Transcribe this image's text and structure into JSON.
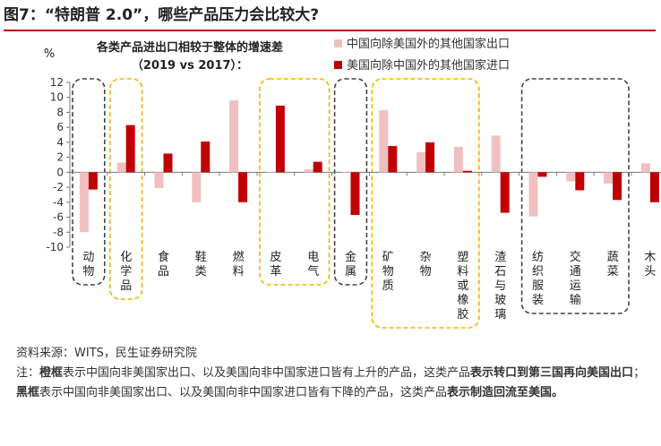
{
  "figure": {
    "title": "图7：“特朗普 2.0”，哪些产品压力会比较大?"
  },
  "chart_data": {
    "type": "bar",
    "title_line1": "各类产品进出口相较于整体的增速差",
    "title_line2": "（2019 vs 2017）：",
    "ylabel": "%",
    "ylim": [
      -10,
      12
    ],
    "yticks": [
      -10,
      -8,
      -6,
      -4,
      -2,
      0,
      2,
      4,
      6,
      8,
      10,
      12
    ],
    "grid": false,
    "legend_position": "top-right",
    "categories": [
      "动物",
      "化学品",
      "食品",
      "鞋类",
      "燃料",
      "皮革",
      "电气",
      "金属",
      "矿物质",
      "杂物",
      "塑料或橡胶",
      "渣石与玻璃",
      "纺织服装",
      "交通运输",
      "蔬菜",
      "木头"
    ],
    "series": [
      {
        "name": "中国向除美国外的其他国家出口",
        "color": "#f0c0c0",
        "values": [
          -8.0,
          1.3,
          -2.1,
          -4.0,
          9.6,
          0.0,
          0.4,
          0.0,
          8.3,
          2.7,
          3.4,
          4.9,
          -5.9,
          -1.2,
          -1.5,
          1.2
        ]
      },
      {
        "name": "美国向除中国外的其他国家进口",
        "color": "#c00000",
        "values": [
          -2.3,
          6.3,
          2.5,
          4.1,
          -4.0,
          8.9,
          1.4,
          -5.7,
          3.5,
          4.0,
          0.2,
          -5.4,
          -0.6,
          -2.4,
          -3.7,
          -4.0
        ]
      }
    ],
    "groups": [
      {
        "style": "black-dashed",
        "members": [
          "动物"
        ]
      },
      {
        "style": "orange-dashed",
        "members": [
          "化学品"
        ]
      },
      {
        "style": "orange-dashed",
        "members": [
          "皮革",
          "电气"
        ]
      },
      {
        "style": "black-dashed",
        "members": [
          "金属"
        ]
      },
      {
        "style": "orange-dashed",
        "members": [
          "矿物质",
          "杂物",
          "塑料或橡胶"
        ]
      },
      {
        "style": "black-dashed",
        "members": [
          "纺织服装",
          "交通运输",
          "蔬菜"
        ]
      }
    ]
  },
  "footer": {
    "source": "资料来源：WITS，民生证券研究院",
    "note_parts": [
      {
        "text": "注：",
        "bold": false
      },
      {
        "text": "橙框",
        "bold": true
      },
      {
        "text": "表示中国向非美国家出口、以及美国向非中国家进口皆有上升的产品，这类产品",
        "bold": false
      },
      {
        "text": "表示转口到第三国再向美国出口",
        "bold": true
      },
      {
        "text": "；",
        "bold": false
      },
      {
        "text": "黑框",
        "bold": true
      },
      {
        "text": "表示中国向非美国家出口、以及美国向非中国家进口皆有下降的产品，这类产品",
        "bold": false
      },
      {
        "text": "表示制造回流至美国。",
        "bold": true
      }
    ]
  },
  "colors": {
    "title_rule": "#b00012",
    "orange_box": "#f0b400",
    "black_box": "#444444"
  }
}
